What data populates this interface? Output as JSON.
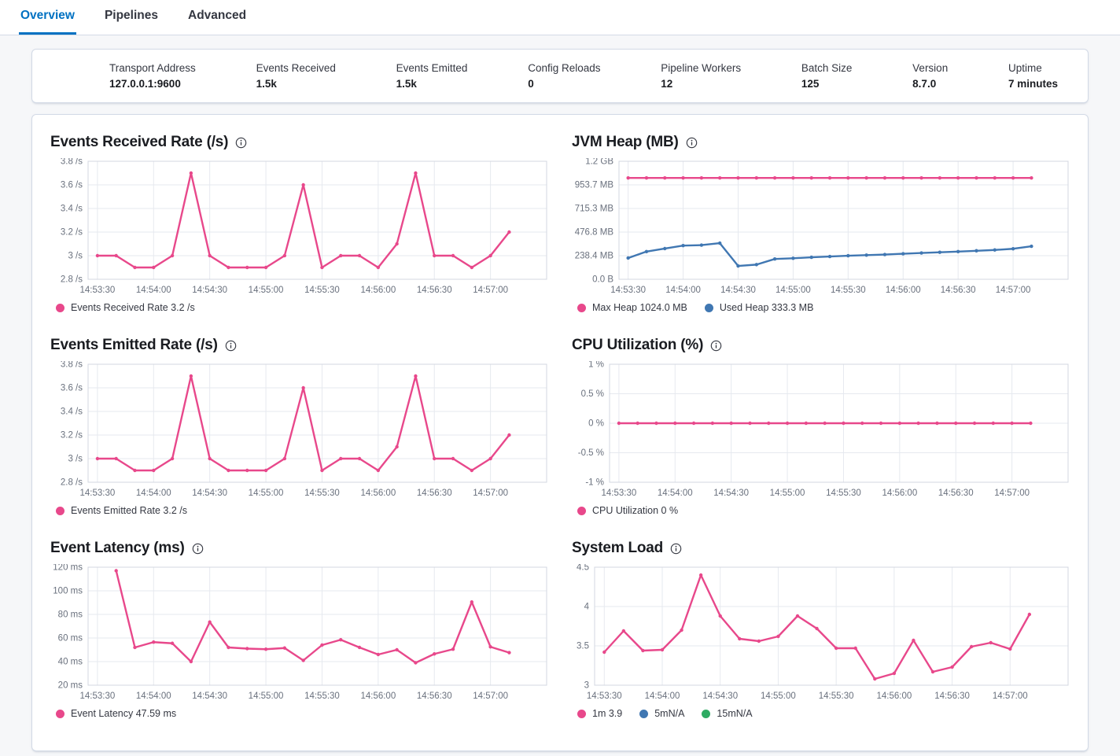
{
  "tabs": [
    {
      "label": "Overview",
      "active": true
    },
    {
      "label": "Pipelines",
      "active": false
    },
    {
      "label": "Advanced",
      "active": false
    }
  ],
  "stats": [
    {
      "label": "Transport Address",
      "value": "127.0.0.1:9600"
    },
    {
      "label": "Events Received",
      "value": "1.5k"
    },
    {
      "label": "Events Emitted",
      "value": "1.5k"
    },
    {
      "label": "Config Reloads",
      "value": "0"
    },
    {
      "label": "Pipeline Workers",
      "value": "12"
    },
    {
      "label": "Batch Size",
      "value": "125"
    },
    {
      "label": "Version",
      "value": "8.7.0"
    },
    {
      "label": "Uptime",
      "value": "7 minutes"
    }
  ],
  "colors": {
    "accent_pink": "#e8488b",
    "series_blue": "#4077b2",
    "series_green": "#2fab63",
    "tab_active_blue": "#0071c2"
  },
  "icons": {
    "chart_title_icon": "info-icon"
  },
  "chart_data": [
    {
      "type": "line",
      "title": "Events Received Rate (/s)",
      "x_ticks": [
        "14:53:30",
        "14:54:00",
        "14:54:30",
        "14:55:00",
        "14:55:30",
        "14:56:00",
        "14:56:30",
        "14:57:00"
      ],
      "x_tick_every_s": 30,
      "x_start_s": 0,
      "x_step_s": 10,
      "x_domain_s": [
        -5,
        240
      ],
      "ylim": [
        2.8,
        3.8
      ],
      "y_ticks": [
        {
          "value": 3.8,
          "label": "3.8 /s"
        },
        {
          "value": 3.6,
          "label": "3.6 /s"
        },
        {
          "value": 3.4,
          "label": "3.4 /s"
        },
        {
          "value": 3.2,
          "label": "3.2 /s"
        },
        {
          "value": 3.0,
          "label": "3 /s"
        },
        {
          "value": 2.8,
          "label": "2.8 /s"
        }
      ],
      "series": [
        {
          "name": "Events Received Rate",
          "color": "#e8488b",
          "values": [
            3,
            3,
            2.9,
            2.9,
            3,
            3.7,
            3,
            2.9,
            2.9,
            2.9,
            3,
            3.6,
            2.9,
            3,
            3,
            2.9,
            3.1,
            3.7,
            3,
            3,
            2.9,
            3,
            3.2
          ]
        }
      ],
      "legend": [
        {
          "label": "Events Received Rate 3.2 /s",
          "color": "#e8488b"
        }
      ]
    },
    {
      "type": "line",
      "title": "JVM Heap (MB)",
      "x_ticks": [
        "14:53:30",
        "14:54:00",
        "14:54:30",
        "14:55:00",
        "14:55:30",
        "14:56:00",
        "14:56:30",
        "14:57:00"
      ],
      "x_tick_every_s": 30,
      "x_start_s": 0,
      "x_step_s": 10,
      "x_domain_s": [
        -5,
        240
      ],
      "ylim": [
        0,
        1192.1
      ],
      "y_ticks": [
        {
          "value": 1192.1,
          "label": "1.2 GB"
        },
        {
          "value": 953.7,
          "label": "953.7 MB"
        },
        {
          "value": 715.3,
          "label": "715.3 MB"
        },
        {
          "value": 476.8,
          "label": "476.8 MB"
        },
        {
          "value": 238.4,
          "label": "238.4 MB"
        },
        {
          "value": 0,
          "label": "0.0 B"
        }
      ],
      "series": [
        {
          "name": "Max Heap",
          "color": "#e8488b",
          "values": [
            1024,
            1024,
            1024,
            1024,
            1024,
            1024,
            1024,
            1024,
            1024,
            1024,
            1024,
            1024,
            1024,
            1024,
            1024,
            1024,
            1024,
            1024,
            1024,
            1024,
            1024,
            1024,
            1024
          ]
        },
        {
          "name": "Used Heap",
          "color": "#4077b2",
          "values": [
            215,
            280,
            310,
            340,
            345,
            365,
            135,
            148,
            205,
            212,
            222,
            230,
            238,
            244,
            250,
            258,
            266,
            273,
            280,
            288,
            296,
            308,
            333.3
          ]
        }
      ],
      "legend": [
        {
          "label": "Max Heap 1024.0 MB",
          "color": "#e8488b"
        },
        {
          "label": "Used Heap 333.3 MB",
          "color": "#4077b2"
        }
      ]
    },
    {
      "type": "line",
      "title": "Events Emitted Rate (/s)",
      "x_ticks": [
        "14:53:30",
        "14:54:00",
        "14:54:30",
        "14:55:00",
        "14:55:30",
        "14:56:00",
        "14:56:30",
        "14:57:00"
      ],
      "x_tick_every_s": 30,
      "x_start_s": 0,
      "x_step_s": 10,
      "x_domain_s": [
        -5,
        240
      ],
      "ylim": [
        2.8,
        3.8
      ],
      "y_ticks": [
        {
          "value": 3.8,
          "label": "3.8 /s"
        },
        {
          "value": 3.6,
          "label": "3.6 /s"
        },
        {
          "value": 3.4,
          "label": "3.4 /s"
        },
        {
          "value": 3.2,
          "label": "3.2 /s"
        },
        {
          "value": 3.0,
          "label": "3 /s"
        },
        {
          "value": 2.8,
          "label": "2.8 /s"
        }
      ],
      "series": [
        {
          "name": "Events Emitted Rate",
          "color": "#e8488b",
          "values": [
            3,
            3,
            2.9,
            2.9,
            3,
            3.7,
            3,
            2.9,
            2.9,
            2.9,
            3,
            3.6,
            2.9,
            3,
            3,
            2.9,
            3.1,
            3.7,
            3,
            3,
            2.9,
            3,
            3.2
          ]
        }
      ],
      "legend": [
        {
          "label": "Events Emitted Rate 3.2 /s",
          "color": "#e8488b"
        }
      ]
    },
    {
      "type": "line",
      "title": "CPU Utilization (%)",
      "x_ticks": [
        "14:53:30",
        "14:54:00",
        "14:54:30",
        "14:55:00",
        "14:55:30",
        "14:56:00",
        "14:56:30",
        "14:57:00"
      ],
      "x_tick_every_s": 30,
      "x_start_s": 0,
      "x_step_s": 10,
      "x_domain_s": [
        -5,
        240
      ],
      "ylim": [
        -1,
        1
      ],
      "y_ticks": [
        {
          "value": 1,
          "label": "1 %"
        },
        {
          "value": 0.5,
          "label": "0.5 %"
        },
        {
          "value": 0,
          "label": "0 %"
        },
        {
          "value": -0.5,
          "label": "-0.5 %"
        },
        {
          "value": -1,
          "label": "-1 %"
        }
      ],
      "series": [
        {
          "name": "CPU Utilization",
          "color": "#e8488b",
          "values": [
            0,
            0,
            0,
            0,
            0,
            0,
            0,
            0,
            0,
            0,
            0,
            0,
            0,
            0,
            0,
            0,
            0,
            0,
            0,
            0,
            0,
            0,
            0
          ]
        }
      ],
      "legend": [
        {
          "label": "CPU Utilization 0 %",
          "color": "#e8488b"
        }
      ]
    },
    {
      "type": "line",
      "title": "Event Latency (ms)",
      "x_ticks": [
        "14:53:30",
        "14:54:00",
        "14:54:30",
        "14:55:00",
        "14:55:30",
        "14:56:00",
        "14:56:30",
        "14:57:00"
      ],
      "x_tick_every_s": 30,
      "x_start_s": 10,
      "x_step_s": 10,
      "x_domain_s": [
        -5,
        240
      ],
      "ylim": [
        20,
        120
      ],
      "y_ticks": [
        {
          "value": 120,
          "label": "120 ms"
        },
        {
          "value": 100,
          "label": "100 ms"
        },
        {
          "value": 80,
          "label": "80 ms"
        },
        {
          "value": 60,
          "label": "60 ms"
        },
        {
          "value": 40,
          "label": "40 ms"
        },
        {
          "value": 20,
          "label": "20 ms"
        }
      ],
      "series": [
        {
          "name": "Event Latency",
          "color": "#e8488b",
          "values": [
            117,
            52,
            56.5,
            55.5,
            40,
            73.5,
            52,
            51,
            50.5,
            51.5,
            41,
            54,
            58.5,
            52,
            46,
            50,
            39,
            46.5,
            50.5,
            90.5,
            52.5,
            47.59
          ]
        }
      ],
      "legend": [
        {
          "label": "Event Latency 47.59 ms",
          "color": "#e8488b"
        }
      ]
    },
    {
      "type": "line",
      "title": "System Load",
      "x_ticks": [
        "14:53:30",
        "14:54:00",
        "14:54:30",
        "14:55:00",
        "14:55:30",
        "14:56:00",
        "14:56:30",
        "14:57:00"
      ],
      "x_tick_every_s": 30,
      "x_start_s": 0,
      "x_step_s": 10,
      "x_domain_s": [
        -5,
        240
      ],
      "ylim": [
        3,
        4.5
      ],
      "y_ticks": [
        {
          "value": 4.5,
          "label": "4.5"
        },
        {
          "value": 4,
          "label": "4"
        },
        {
          "value": 3.5,
          "label": "3.5"
        },
        {
          "value": 3,
          "label": "3"
        }
      ],
      "series": [
        {
          "name": "1m",
          "color": "#e8488b",
          "values": [
            3.42,
            3.69,
            3.44,
            3.45,
            3.7,
            4.4,
            3.88,
            3.59,
            3.56,
            3.62,
            3.88,
            3.72,
            3.47,
            3.47,
            3.08,
            3.15,
            3.57,
            3.17,
            3.23,
            3.49,
            3.54,
            3.46,
            3.9
          ]
        }
      ],
      "legend": [
        {
          "label": "1m 3.9",
          "color": "#e8488b"
        },
        {
          "label": "5mN/A",
          "color": "#4077b2"
        },
        {
          "label": "15mN/A",
          "color": "#2fab63"
        }
      ]
    }
  ]
}
